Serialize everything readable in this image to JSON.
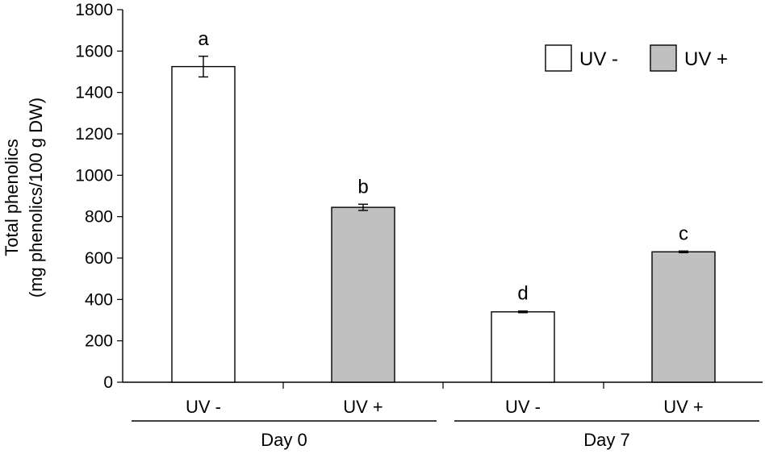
{
  "chart_data": {
    "type": "bar",
    "ylabel_line1": "Total phenolics",
    "ylabel_line2": "(mg phenolics/100 g DW)",
    "ylim": [
      0,
      1800
    ],
    "yticks": [
      0,
      200,
      400,
      600,
      800,
      1000,
      1200,
      1400,
      1600,
      1800
    ],
    "categories": [
      "UV -",
      "UV +",
      "UV -",
      "UV +"
    ],
    "groups": [
      {
        "label": "Day 0",
        "categories": [
          0,
          1
        ]
      },
      {
        "label": "Day 7",
        "categories": [
          2,
          3
        ]
      }
    ],
    "bars": [
      {
        "category": "UV -",
        "group": "Day 0",
        "value": 1525,
        "error": 50,
        "letter": "a",
        "series": "UV -"
      },
      {
        "category": "UV +",
        "group": "Day 0",
        "value": 845,
        "error": 15,
        "letter": "b",
        "series": "UV +"
      },
      {
        "category": "UV -",
        "group": "Day 7",
        "value": 340,
        "error": 4,
        "letter": "d",
        "series": "UV -"
      },
      {
        "category": "UV +",
        "group": "Day 7",
        "value": 630,
        "error": 4,
        "letter": "c",
        "series": "UV +"
      }
    ],
    "legend": {
      "position": "top-right",
      "entries": [
        {
          "label": "UV -",
          "color": "#ffffff"
        },
        {
          "label": "UV +",
          "color": "#c0c0c0"
        }
      ]
    },
    "colors": {
      "UV -": "#ffffff",
      "UV +": "#c0c0c0"
    },
    "grid": false
  }
}
